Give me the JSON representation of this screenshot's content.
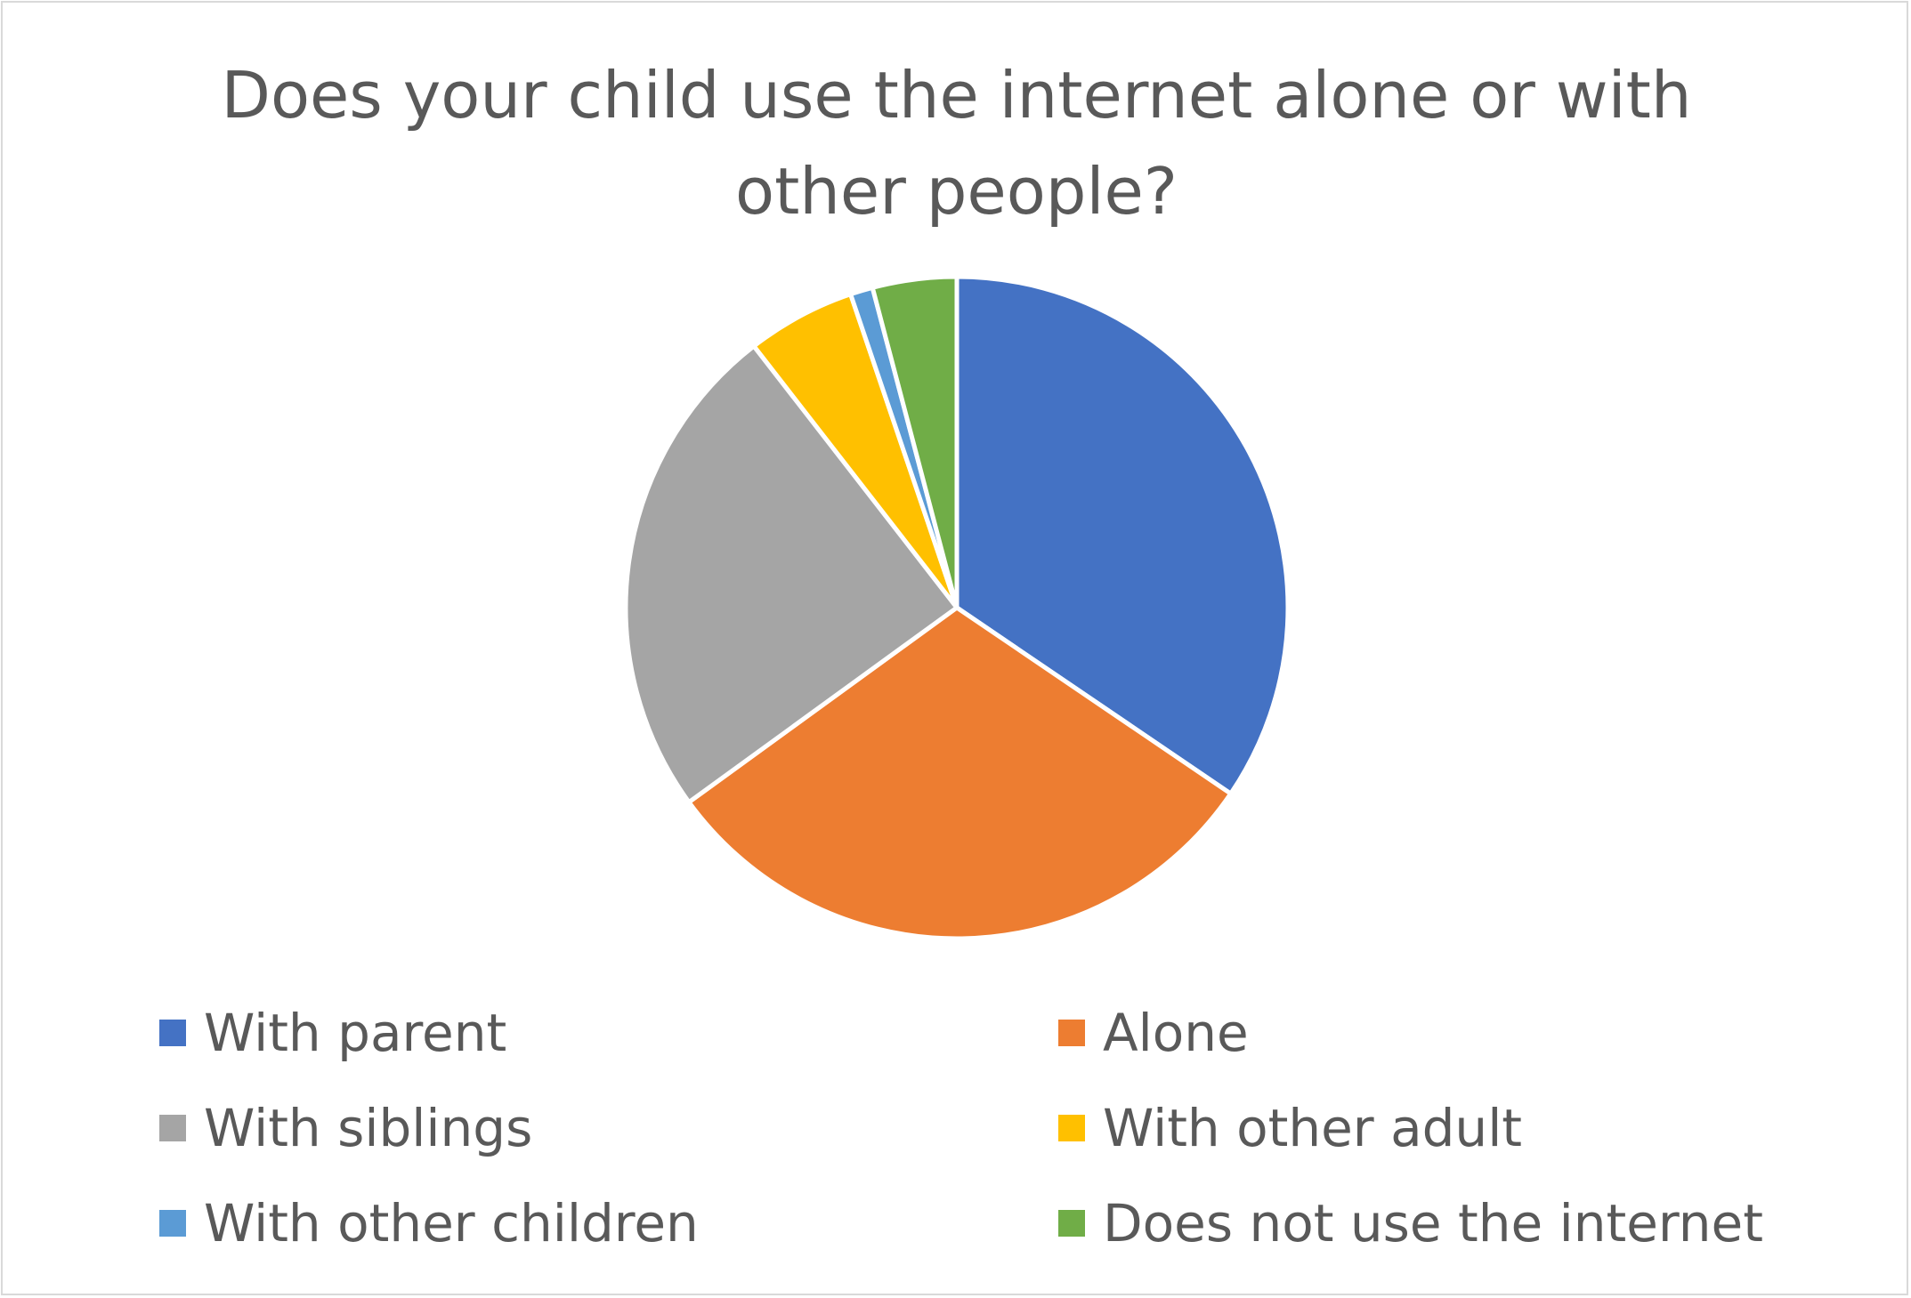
{
  "chart_data": {
    "type": "pie",
    "title": "Does your child use the internet alone or with other people?",
    "title_lines": [
      "Does your child use the internet alone or with",
      "other people?"
    ],
    "categories": [
      "With parent",
      "Alone",
      "With siblings",
      "With other adult",
      "With other children",
      "Does not use the internet"
    ],
    "values": [
      34.5,
      30.5,
      24.5,
      5.3,
      1.1,
      4.1
    ],
    "colors": [
      "#4472c4",
      "#ed7d31",
      "#a5a5a5",
      "#ffc000",
      "#5b9bd5",
      "#70ad47"
    ],
    "start_angle_deg": 0,
    "direction": "clockwise",
    "legend_position": "bottom"
  }
}
